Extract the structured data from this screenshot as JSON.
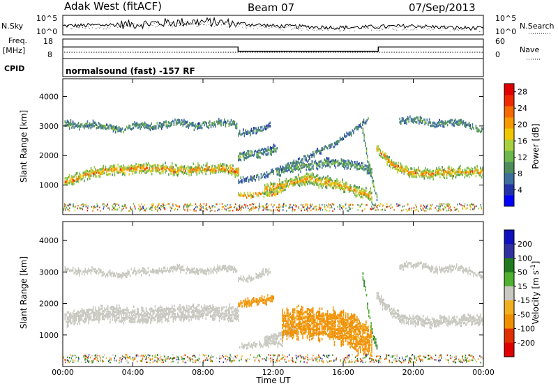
{
  "header": {
    "radar": "Adak West (fitACF)",
    "beam": "Beam 07",
    "date": "07/Sep/2013"
  },
  "noise_panel": {
    "left_label": "N.Sky",
    "right_label": "N.Search",
    "ticks_left": [
      "10^5",
      "10^0"
    ],
    "ticks_right": [
      "10^5",
      "10^0"
    ]
  },
  "freq_panel": {
    "left_label_1": "Freq.",
    "left_label_2": "[MHz]",
    "ticks_left": [
      "18",
      "8"
    ],
    "ticks_right": [
      "60",
      "0"
    ],
    "right_label": "Nave"
  },
  "cpid": {
    "label": "CPID",
    "text": "normalsound (fast) -157 RF"
  },
  "colors": {
    "power_scale": [
      "#0000ff",
      "#2233aa",
      "#3c6e9e",
      "#4e8c5e",
      "#6cb84c",
      "#a8d040",
      "#f0c800",
      "#f59a00",
      "#f46a00",
      "#f02a00",
      "#e00000"
    ],
    "velocity_scale": [
      "#1010c0",
      "#3030a0",
      "#207a20",
      "#50b030",
      "#90d050",
      "#c8c8c0",
      "#f0b020",
      "#f09000",
      "#f06000",
      "#e03000",
      "#e00000"
    ]
  },
  "chart_data": [
    {
      "type": "line",
      "name": "noise",
      "x": [
        0,
        2,
        4,
        6,
        8,
        10,
        12,
        14,
        16,
        18,
        20,
        22,
        24
      ],
      "values": [
        0.45,
        0.5,
        0.55,
        0.65,
        0.7,
        0.6,
        0.45,
        0.4,
        0.35,
        0.4,
        0.45,
        0.35,
        0.3
      ],
      "ylim": [
        0,
        1
      ]
    },
    {
      "type": "line",
      "name": "frequency",
      "x": [
        0,
        10,
        10,
        18,
        18,
        24
      ],
      "values": [
        13.3,
        13.3,
        10.2,
        10.2,
        13.3,
        13.3
      ],
      "ylim": [
        6,
        18
      ]
    },
    {
      "type": "heatmap",
      "variable": "power",
      "xlabel": "Time UT",
      "ylabel": "Slant Range [km]",
      "cbar_label": "Power [dB]",
      "xlim": [
        0,
        24
      ],
      "ylim": [
        0,
        4600
      ],
      "xticks": [
        "00:00",
        "04:00",
        "08:00",
        "12:00",
        "16:00",
        "20:00",
        "00:00"
      ],
      "yticks": [
        1000,
        2000,
        3000,
        4000
      ],
      "cbar_ticks": [
        4,
        8,
        12,
        16,
        20,
        24,
        28
      ],
      "cbar_range": [
        0,
        30
      ],
      "bands": [
        {
          "t0": 0.1,
          "t1": 10.0,
          "r": [
            1200,
            1350,
            1500,
            1550,
            1580,
            1650,
            1620,
            1600,
            1550,
            1600,
            1620,
            1600,
            1550
          ],
          "w": 300,
          "p": 23
        },
        {
          "t0": 0.1,
          "t1": 9.9,
          "r": [
            3150,
            3050,
            3100,
            3000,
            2950,
            3100,
            3050,
            3100,
            3200,
            3050,
            3100,
            3200,
            3100
          ],
          "w": 180,
          "p": 12
        },
        {
          "t0": 10.0,
          "t1": 11.8,
          "r": [
            2800,
            2850,
            2900,
            3000,
            3100
          ],
          "w": 180,
          "p": 10
        },
        {
          "t0": 10.0,
          "t1": 12.2,
          "r": [
            2050,
            2100,
            2150,
            2200,
            2300
          ],
          "w": 250,
          "p": 12
        },
        {
          "t0": 10.0,
          "t1": 17.4,
          "r": [
            1200,
            1300,
            1550,
            1800,
            2100,
            2400,
            2800,
            3300
          ],
          "w": 160,
          "p": 10
        },
        {
          "t0": 10.0,
          "t1": 12.5,
          "r": [
            700,
            720,
            750,
            780,
            800
          ],
          "w": 140,
          "p": 23
        },
        {
          "t0": 11.5,
          "t1": 17.6,
          "r": [
            900,
            1000,
            1100,
            1200,
            1250,
            1200,
            1150,
            1050,
            950,
            800,
            700
          ],
          "w": 320,
          "p": 22
        },
        {
          "t0": 12.2,
          "t1": 17.6,
          "r": [
            1500,
            1650,
            1700,
            1750,
            1800,
            1800,
            1700,
            1550
          ],
          "w": 250,
          "p": 13
        },
        {
          "t0": 17.1,
          "t1": 17.9,
          "r": [
            2900,
            2000,
            1200,
            700
          ],
          "w": 220,
          "p": 14
        },
        {
          "t0": 17.9,
          "t1": 24.0,
          "r": [
            2300,
            1800,
            1550,
            1500,
            1450,
            1500,
            1500,
            1550,
            1500
          ],
          "w": 280,
          "p": 23
        },
        {
          "t0": 19.2,
          "t1": 24.0,
          "r": [
            3200,
            3300,
            3250,
            3100,
            3150,
            3200,
            3050,
            2900
          ],
          "w": 180,
          "p": 12
        }
      ]
    },
    {
      "type": "heatmap",
      "variable": "velocity",
      "xlabel": "Time UT",
      "ylabel": "Slant Range [km]",
      "cbar_label": "Velocity [m s^-1]",
      "xlim": [
        0,
        24
      ],
      "ylim": [
        0,
        4600
      ],
      "xticks": [
        "00:00",
        "04:00",
        "08:00",
        "12:00",
        "16:00",
        "20:00",
        "00:00"
      ],
      "yticks": [
        1000,
        2000,
        3000,
        4000
      ],
      "cbar_ticks": [
        "200",
        "100",
        "50",
        "15",
        "-15",
        "-50",
        "-100",
        "-200"
      ],
      "bands": [
        {
          "t0": 0.1,
          "t1": 10.0,
          "r": [
            1600,
            1650,
            1700,
            1750,
            1700,
            1650,
            1700,
            1750,
            1750,
            1800,
            1800,
            1750,
            1700
          ],
          "w": 420,
          "v": 0
        },
        {
          "t0": 0.1,
          "t1": 9.9,
          "r": [
            3150,
            3050,
            3100,
            3000,
            2950,
            3100,
            3050,
            3100,
            3200,
            3050,
            3100,
            3200,
            3100
          ],
          "w": 160,
          "v": 0
        },
        {
          "t0": 10.0,
          "t1": 11.8,
          "r": [
            2800,
            2850,
            2900,
            3000,
            3100
          ],
          "w": 160,
          "v": 0
        },
        {
          "t0": 10.0,
          "t1": 12.0,
          "r": [
            2050,
            2100,
            2150,
            2200
          ],
          "w": 200,
          "v": -40
        },
        {
          "t0": 10.0,
          "t1": 12.5,
          "r": [
            700,
            720,
            750,
            780,
            800
          ],
          "w": 140,
          "v": 0
        },
        {
          "t0": 11.5,
          "t1": 13.2,
          "r": [
            900,
            1000,
            1100,
            1200
          ],
          "w": 260,
          "v": 0
        },
        {
          "t0": 12.5,
          "t1": 17.6,
          "r": [
            1400,
            1450,
            1450,
            1400,
            1350,
            1250,
            1050,
            800
          ],
          "w": 900,
          "v": -45
        },
        {
          "t0": 17.1,
          "t1": 17.9,
          "r": [
            2900,
            2000,
            1200,
            700
          ],
          "w": 220,
          "v": 30
        },
        {
          "t0": 17.9,
          "t1": 24.0,
          "r": [
            2300,
            1800,
            1550,
            1500,
            1450,
            1500,
            1500,
            1550,
            1500
          ],
          "w": 280,
          "v": 0
        },
        {
          "t0": 19.2,
          "t1": 24.0,
          "r": [
            3200,
            3300,
            3250,
            3100,
            3150,
            3200,
            3050,
            2900
          ],
          "w": 160,
          "v": 0
        }
      ]
    }
  ]
}
